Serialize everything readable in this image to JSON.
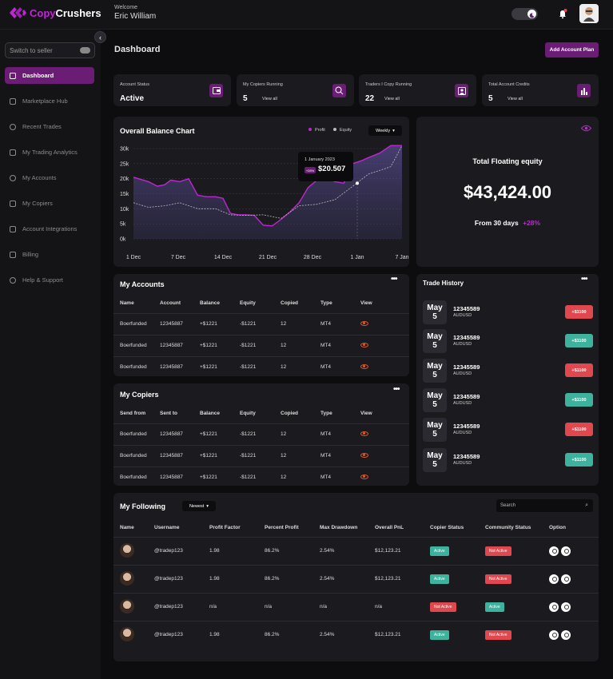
{
  "brand": {
    "name_part1": "Copy",
    "name_part2": "Crushers",
    "accent": "#6b1c75",
    "highlight": "#c026d3"
  },
  "header": {
    "welcome": "Welcome",
    "user_name": "Eric William",
    "theme_toggle_icon": "moon-icon",
    "notification_icon": "bell-icon"
  },
  "sidebar": {
    "switch_label": "Switch to seller",
    "items": [
      {
        "label": "Dashboard",
        "icon": "dashboard-icon",
        "active": true
      },
      {
        "label": "Marketplace Hub",
        "icon": "store-icon"
      },
      {
        "label": "Recent Trades",
        "icon": "clock-icon"
      },
      {
        "label": "My Trading Analytics",
        "icon": "analytics-icon"
      },
      {
        "label": "My Accounts",
        "icon": "accounts-icon"
      },
      {
        "label": "My Copiers",
        "icon": "copy-icon"
      },
      {
        "label": "Account Integrations",
        "icon": "integrations-icon"
      },
      {
        "label": "Billing",
        "icon": "card-icon"
      },
      {
        "label": "Help & Support",
        "icon": "headset-icon"
      }
    ]
  },
  "main": {
    "title": "Dashboard",
    "add_button": "Add Account Plan"
  },
  "stats": [
    {
      "label": "Account Status",
      "value": "Active",
      "sub": "",
      "icon": "wallet-icon"
    },
    {
      "label": "My Copiers Running",
      "value": "5",
      "sub": "View all",
      "icon": "search-user-icon"
    },
    {
      "label": "Traders I Copy Running",
      "value": "22",
      "sub": "View all",
      "icon": "image-user-icon"
    },
    {
      "label": "Total Account Credits",
      "value": "5",
      "sub": "View all",
      "icon": "bar-chart-icon"
    }
  ],
  "balance_chart": {
    "title": "Overall Balance Chart",
    "legend_profit": "Profit",
    "legend_equity": "Equity",
    "period": "Weekly",
    "tooltip_date": "1 January 2023",
    "tooltip_change": "+28%",
    "tooltip_value": "$20.507"
  },
  "chart_data": {
    "type": "area",
    "x": [
      "1 Dec",
      "7 Dec",
      "14 Dec",
      "21 Dec",
      "28 Dec",
      "1 Jan",
      "7 Jan"
    ],
    "yticks": [
      "30k",
      "25k",
      "20k",
      "15k",
      "10k",
      "5k",
      "0k"
    ],
    "ylim": [
      0,
      30000
    ],
    "series": [
      {
        "name": "Profit",
        "color": "#c026d3",
        "x": [
          0,
          2,
          3.2,
          4.2,
          5,
          6.2,
          7.4,
          8.6,
          9.8,
          11,
          12,
          13,
          14,
          15,
          16.2,
          17.4,
          18.6,
          19.8,
          21,
          22.2,
          23.4,
          24.6,
          25.8,
          27,
          28.2,
          29.4,
          30.6,
          31.5,
          33,
          34.5,
          36
        ],
        "y": [
          20500,
          19000,
          17500,
          18000,
          19500,
          19000,
          20000,
          14500,
          14000,
          14000,
          13500,
          8500,
          8000,
          8000,
          7800,
          4500,
          4300,
          6500,
          9000,
          12000,
          17000,
          19500,
          20500,
          19000,
          18500,
          25000,
          26000,
          27000,
          28500,
          31000,
          31000
        ]
      },
      {
        "name": "Equity",
        "color": "#aaaaaa",
        "x": [
          0,
          2,
          4.2,
          6.2,
          8.6,
          11,
          13,
          15,
          17.4,
          19.8,
          22.2,
          24.6,
          27,
          29.4,
          31.5,
          34.5,
          36
        ],
        "y": [
          12000,
          10500,
          11000,
          12000,
          10000,
          10000,
          8000,
          7800,
          8000,
          6800,
          11000,
          11500,
          13000,
          17500,
          21500,
          24000,
          31000
        ]
      }
    ],
    "highlight_x": "1 Jan",
    "grid": true
  },
  "floating_equity": {
    "title": "Total Floating equity",
    "value": "$43,424.00",
    "period": "From 30 days",
    "change": "+28%",
    "icon": "eye-icon"
  },
  "my_accounts": {
    "title": "My Accounts",
    "columns": [
      "Name",
      "Account",
      "Balance",
      "Equity",
      "Copied",
      "Type",
      "View"
    ],
    "rows": [
      [
        "Boerfunded",
        "12345887",
        "+$1221",
        "-$1221",
        "12",
        "MT4"
      ],
      [
        "Boerfunded",
        "12345887",
        "+$1221",
        "-$1221",
        "12",
        "MT4"
      ],
      [
        "Boerfunded",
        "12345887",
        "+$1221",
        "-$1221",
        "12",
        "MT4"
      ]
    ]
  },
  "my_copiers": {
    "title": "My Copiers",
    "columns": [
      "Send from",
      "Sent to",
      "Balance",
      "Equity",
      "Copied",
      "Type",
      "View"
    ],
    "rows": [
      [
        "Boerfunded",
        "12345887",
        "+$1221",
        "-$1221",
        "12",
        "MT4"
      ],
      [
        "Boerfunded",
        "12345887",
        "+$1221",
        "-$1221",
        "12",
        "MT4"
      ],
      [
        "Boerfunded",
        "12345887",
        "+$1221",
        "-$1221",
        "12",
        "MT4"
      ]
    ]
  },
  "trade_history": {
    "title": "Trade History",
    "items": [
      {
        "month": "May",
        "day": "5",
        "id": "12345589",
        "pair": "AUDUSD",
        "amount": "+$1100",
        "status": "red"
      },
      {
        "month": "May",
        "day": "5",
        "id": "12345589",
        "pair": "AUDUSD",
        "amount": "+$1100",
        "status": "green"
      },
      {
        "month": "May",
        "day": "5",
        "id": "12345589",
        "pair": "AUDUSD",
        "amount": "+$1100",
        "status": "red"
      },
      {
        "month": "May",
        "day": "5",
        "id": "12345589",
        "pair": "AUDUSD",
        "amount": "+$1100",
        "status": "green"
      },
      {
        "month": "May",
        "day": "5",
        "id": "12345589",
        "pair": "AUDUSD",
        "amount": "+$1100",
        "status": "red"
      },
      {
        "month": "May",
        "day": "5",
        "id": "12345589",
        "pair": "AUDUSD",
        "amount": "+$1100",
        "status": "green"
      }
    ]
  },
  "following": {
    "title": "My Following",
    "sort": "Newest",
    "search_placeholder": "Search",
    "columns": [
      "Name",
      "Username",
      "Profit Factor",
      "Percent Profit",
      "Max Drawdown",
      "Overall PnL",
      "Copier Status",
      "Community Status",
      "Option"
    ],
    "rows": [
      {
        "username": "@tradep123",
        "pf": "1.98",
        "pp": "86.2%",
        "dd": "2.54%",
        "pnl": "$12,123.21",
        "copier": "Active",
        "community": "Not Active"
      },
      {
        "username": "@tradep123",
        "pf": "1.98",
        "pp": "86.2%",
        "dd": "2.54%",
        "pnl": "$12,123.21",
        "copier": "Active",
        "community": "Not Active"
      },
      {
        "username": "@tradep123",
        "pf": "n/a",
        "pp": "n/a",
        "dd": "n/a",
        "pnl": "n/a",
        "copier": "Not Active",
        "community": "Active"
      },
      {
        "username": "@tradep123",
        "pf": "1.98",
        "pp": "86.2%",
        "dd": "2.54%",
        "pnl": "$12,123.21",
        "copier": "Active",
        "community": "Not Active"
      }
    ]
  }
}
